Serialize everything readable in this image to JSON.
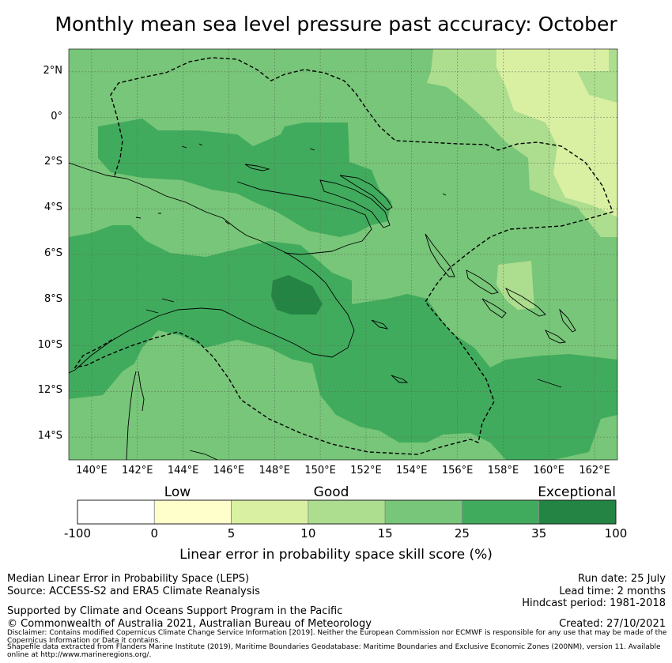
{
  "title": "Monthly mean sea level pressure past accuracy: October",
  "map": {
    "lat_labels": [
      "2°N",
      "0°",
      "2°S",
      "4°S",
      "6°S",
      "8°S",
      "10°S",
      "12°S",
      "14°S"
    ],
    "lon_labels": [
      "140°E",
      "142°E",
      "144°E",
      "146°E",
      "148°E",
      "150°E",
      "152°E",
      "154°E",
      "156°E",
      "158°E",
      "160°E",
      "162°E"
    ],
    "lon_range": [
      139,
      163
    ],
    "lat_range": [
      -15,
      3
    ],
    "base_color": "#78c679"
  },
  "legend": {
    "category_labels": [
      "Low",
      "Good",
      "Exceptional"
    ],
    "tick_labels": [
      "-100",
      "0",
      "5",
      "10",
      "15",
      "25",
      "35",
      "100"
    ],
    "colors": [
      "#ffffff",
      "#ffffcc",
      "#d9f0a3",
      "#addd8e",
      "#78c679",
      "#41ab5d",
      "#238443"
    ],
    "title": "Linear error in probability space skill score (%)"
  },
  "footer": {
    "method": "Median Linear Error in Probability Space (LEPS)",
    "source": "Source: ACCESS-S2 and ERA5 Climate Reanalysis",
    "support": "Supported by Climate and Oceans Support Program in the Pacific",
    "copyright": "© Commonwealth of Australia 2021, Australian Bureau of Meteorology",
    "run_date": "Run date: 25 July",
    "lead_time": "Lead time: 2 months",
    "hindcast": "Hindcast period: 1981-2018",
    "created": "Created: 27/10/2021",
    "disclaimer": "Disclaimer: Contains modified Copernicus Climate Change Service Information [2019]. Neither the European Commission nor ECMWF is responsible for any use that may be made of the Copernicus Information or Data it contains.",
    "shapefile": "Shapefile data extracted from Flanders Marine Institute (2019), Maritime Boundaries Geodatabase: Maritime Boundaries and Exclusive Economic Zones (200NM), version 11. Available online at http://www.marineregions.org/."
  }
}
